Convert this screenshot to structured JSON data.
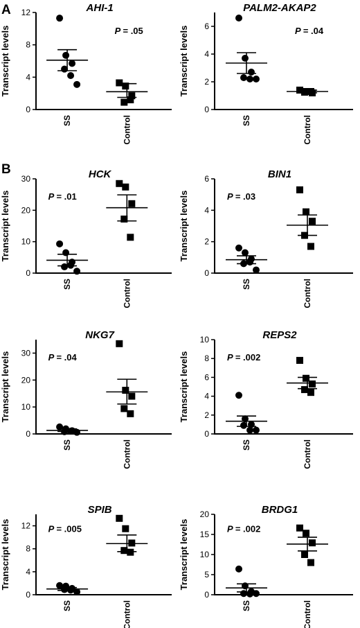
{
  "panel_labels": [
    "A",
    "B"
  ],
  "chart_data": [
    {
      "type": "scatter",
      "title": "AHI-1",
      "ylabel": "Transcript levels",
      "categories": [
        "SS",
        "Control"
      ],
      "ylim": [
        0,
        12
      ],
      "yticks": [
        0,
        4,
        8,
        12
      ],
      "p_prefix": "P",
      "p_text": "= .05",
      "p_pos": "top-right",
      "series": [
        {
          "name": "SS",
          "marker": "circle",
          "values": [
            11.3,
            6.7,
            5.7,
            5.0,
            4.2,
            3.1
          ],
          "mean": 6.1,
          "sem": [
            4.8,
            7.4
          ]
        },
        {
          "name": "Control",
          "marker": "square",
          "values": [
            3.3,
            2.9,
            1.7,
            0.9,
            1.2
          ],
          "mean": 2.2,
          "sem": [
            1.5,
            3.2
          ]
        }
      ]
    },
    {
      "type": "scatter",
      "title": "PALM2-AKAP2",
      "ylabel": "Transcript levels",
      "categories": [
        "SS",
        "Control"
      ],
      "ylim": [
        0,
        7
      ],
      "yticks": [
        0,
        2,
        4,
        6
      ],
      "p_prefix": "P",
      "p_text": "= .04",
      "p_pos": "top-right",
      "series": [
        {
          "name": "SS",
          "marker": "circle",
          "values": [
            6.6,
            3.7,
            2.7,
            2.3,
            2.2,
            2.2
          ],
          "mean": 3.35,
          "sem": [
            2.6,
            4.1
          ]
        },
        {
          "name": "Control",
          "marker": "square",
          "values": [
            1.4,
            1.3,
            1.2,
            1.25,
            1.3
          ],
          "mean": 1.3,
          "sem": [
            1.2,
            1.4
          ]
        }
      ]
    },
    {
      "type": "scatter",
      "title": "HCK",
      "ylabel": "Transcript levels",
      "categories": [
        "SS",
        "Control"
      ],
      "ylim": [
        0,
        30
      ],
      "yticks": [
        0,
        10,
        20,
        30
      ],
      "p_prefix": "P",
      "p_text": "= .01",
      "p_pos": "top-left",
      "series": [
        {
          "name": "SS",
          "marker": "circle",
          "values": [
            9.3,
            6.5,
            3.5,
            2.0,
            2.5,
            0.6
          ],
          "mean": 4.1,
          "sem": [
            2.3,
            6.0
          ]
        },
        {
          "name": "Control",
          "marker": "square",
          "values": [
            28.5,
            27.4,
            22.1,
            17.2,
            11.4
          ],
          "mean": 20.8,
          "sem": [
            16.6,
            24.9
          ]
        }
      ]
    },
    {
      "type": "scatter",
      "title": "BIN1",
      "ylabel": "Transcript levels",
      "categories": [
        "SS",
        "Control"
      ],
      "ylim": [
        0,
        6
      ],
      "yticks": [
        0,
        2,
        4,
        6
      ],
      "p_prefix": "P",
      "p_text": "= .03",
      "p_pos": "top-left",
      "series": [
        {
          "name": "SS",
          "marker": "circle",
          "values": [
            1.6,
            1.3,
            0.9,
            0.6,
            0.7,
            0.2
          ],
          "mean": 0.85,
          "sem": [
            0.6,
            1.1
          ]
        },
        {
          "name": "Control",
          "marker": "square",
          "values": [
            5.3,
            3.9,
            3.3,
            2.4,
            1.7
          ],
          "mean": 3.05,
          "sem": [
            2.4,
            3.7
          ]
        }
      ]
    },
    {
      "type": "scatter",
      "title": "NKG7",
      "ylabel": "Transcript levels",
      "categories": [
        "SS",
        "Control"
      ],
      "ylim": [
        0,
        35
      ],
      "yticks": [
        0,
        10,
        20,
        30
      ],
      "p_prefix": "P",
      "p_text": "= .04",
      "p_pos": "top-left",
      "series": [
        {
          "name": "SS",
          "marker": "circle",
          "values": [
            2.6,
            1.9,
            1.2,
            0.8,
            1.0,
            0.6
          ],
          "mean": 1.3,
          "sem": [
            0.9,
            1.9
          ]
        },
        {
          "name": "Control",
          "marker": "square",
          "values": [
            33.5,
            16.2,
            14.0,
            9.4,
            7.5
          ],
          "mean": 15.6,
          "sem": [
            11.1,
            20.3
          ]
        }
      ]
    },
    {
      "type": "scatter",
      "title": "REPS2",
      "ylabel": "Transcript levels",
      "categories": [
        "SS",
        "Control"
      ],
      "ylim": [
        0,
        10
      ],
      "yticks": [
        0,
        2,
        4,
        6,
        8,
        10
      ],
      "p_prefix": "P",
      "p_text": "= .002",
      "p_pos": "top-left",
      "series": [
        {
          "name": "SS",
          "marker": "circle",
          "values": [
            4.1,
            1.6,
            1.0,
            0.9,
            0.4,
            0.4
          ],
          "mean": 1.35,
          "sem": [
            0.8,
            1.9
          ]
        },
        {
          "name": "Control",
          "marker": "square",
          "values": [
            7.8,
            5.9,
            5.3,
            4.7,
            4.4
          ],
          "mean": 5.4,
          "sem": [
            4.8,
            6.0
          ]
        }
      ]
    },
    {
      "type": "scatter",
      "title": "SPIB",
      "ylabel": "Transcript levels",
      "categories": [
        "SS",
        "Control"
      ],
      "ylim": [
        0,
        14
      ],
      "yticks": [
        0,
        4,
        8,
        12
      ],
      "p_prefix": "P",
      "p_text": "= .005",
      "p_pos": "top-left",
      "series": [
        {
          "name": "SS",
          "marker": "circle",
          "values": [
            1.6,
            1.5,
            1.1,
            0.9,
            0.8,
            0.5
          ],
          "mean": 1.0,
          "sem": [
            0.75,
            1.25
          ]
        },
        {
          "name": "Control",
          "marker": "square",
          "values": [
            13.3,
            11.5,
            9.0,
            7.7,
            7.4
          ],
          "mean": 8.9,
          "sem": [
            7.5,
            10.4
          ]
        }
      ]
    },
    {
      "type": "scatter",
      "title": "BRDG1",
      "ylabel": "Transcript levels",
      "categories": [
        "SS",
        "Control"
      ],
      "ylim": [
        0,
        20
      ],
      "yticks": [
        0,
        5,
        10,
        15,
        20
      ],
      "p_prefix": "P",
      "p_text": "= .002",
      "p_pos": "top-left",
      "series": [
        {
          "name": "SS",
          "marker": "circle",
          "values": [
            6.4,
            2.2,
            0.8,
            0.3,
            0.2,
            0.3
          ],
          "mean": 1.7,
          "sem": [
            0.7,
            2.7
          ]
        },
        {
          "name": "Control",
          "marker": "square",
          "values": [
            16.6,
            15.3,
            12.9,
            10.0,
            8.0
          ],
          "mean": 12.6,
          "sem": [
            10.9,
            14.3
          ]
        }
      ]
    }
  ]
}
